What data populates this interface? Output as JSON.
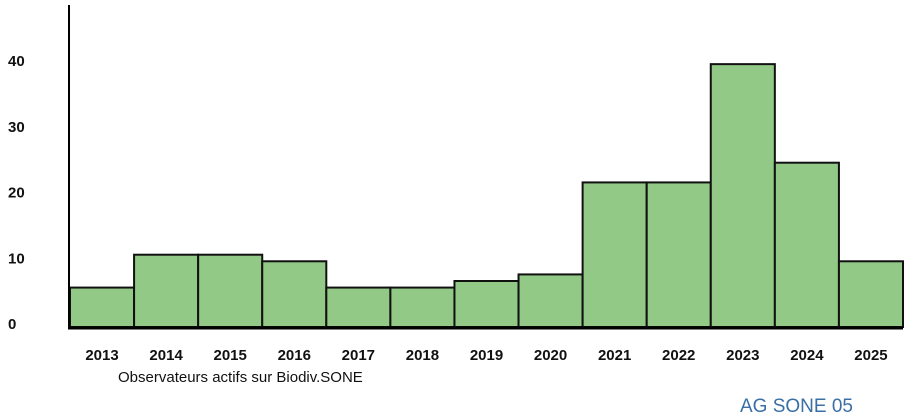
{
  "chart_data": {
    "type": "bar",
    "categories": [
      "2013",
      "2014",
      "2015",
      "2016",
      "2017",
      "2018",
      "2019",
      "2020",
      "2021",
      "2022",
      "2023",
      "2024",
      "2025"
    ],
    "values": [
      6,
      11,
      11,
      10,
      6,
      6,
      7,
      8,
      22,
      22,
      40,
      25,
      10
    ],
    "color": "#93c987",
    "ylim": [
      0,
      49
    ],
    "yticks": [
      0,
      10,
      20,
      30,
      40
    ],
    "caption": "Observateurs actifs sur Biodiv.SONE",
    "footer": "AG SONE 05"
  }
}
